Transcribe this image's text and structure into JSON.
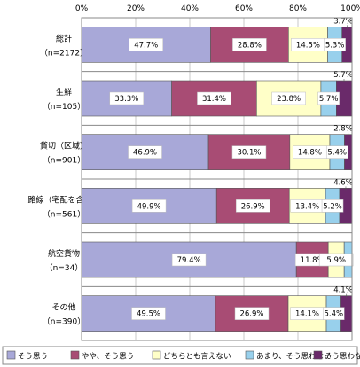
{
  "chart_data": {
    "type": "bar",
    "orientation": "horizontal",
    "stacked": true,
    "percent": true,
    "xlim": [
      0,
      100
    ],
    "x_ticks": [
      "0%",
      "20%",
      "40%",
      "60%",
      "80%",
      "100%"
    ],
    "categories": [
      {
        "name": "総計",
        "n": "（n=2172）"
      },
      {
        "name": "生鮮",
        "n": "（n=105）"
      },
      {
        "name": "貸切（区域）",
        "n": "（n=901）"
      },
      {
        "name": "路線（宅配を含む）",
        "n": "（n=561）"
      },
      {
        "name": "航空貨物",
        "n": "（n=34）"
      },
      {
        "name": "その他",
        "n": "（n=390）"
      }
    ],
    "series": [
      {
        "name": "そう思う",
        "color": "#a8a8d8",
        "values": [
          47.7,
          33.3,
          46.9,
          49.9,
          79.4,
          49.5
        ]
      },
      {
        "name": "やや、そう思う",
        "color": "#a84c74",
        "values": [
          28.8,
          31.4,
          30.1,
          26.9,
          11.8,
          26.9
        ]
      },
      {
        "name": "どちらとも言えない",
        "color": "#ffffc8",
        "values": [
          14.5,
          23.8,
          14.8,
          13.4,
          5.9,
          14.1
        ]
      },
      {
        "name": "あまり、そう思わない",
        "color": "#98d0ec",
        "values": [
          5.3,
          5.7,
          5.4,
          5.2,
          2.9,
          5.4
        ]
      },
      {
        "name": "そう思わない",
        "color": "#6a2a6a",
        "values": [
          3.7,
          5.7,
          2.8,
          4.6,
          0.0,
          4.1
        ]
      }
    ],
    "labels": [
      [
        "47.7%",
        "28.8%",
        "14.5%",
        "5.3%",
        "3.7%"
      ],
      [
        "33.3%",
        "31.4%",
        "23.8%",
        "5.7%",
        "5.7%"
      ],
      [
        "46.9%",
        "30.1%",
        "14.8%",
        "5.4%",
        "2.8%"
      ],
      [
        "49.9%",
        "26.9%",
        "13.4%",
        "5.2%",
        "4.6%"
      ],
      [
        "79.4%",
        "11.8%",
        "5.9%",
        "",
        ""
      ],
      [
        "49.5%",
        "26.9%",
        "14.1%",
        "5.4%",
        "4.1%"
      ]
    ],
    "grid": true,
    "legend_position": "bottom"
  }
}
